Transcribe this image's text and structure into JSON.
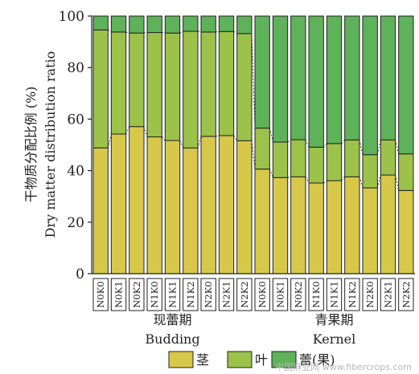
{
  "chart_data": {
    "type": "bar",
    "stacked": true,
    "categories": [
      "N0K0",
      "N0K1",
      "N0K2",
      "N1K0",
      "N1K1",
      "N1K2",
      "N2K0",
      "N2K1",
      "N2K2",
      "N0K0",
      "N0K1",
      "N0K2",
      "N1K0",
      "N1K1",
      "N1K2",
      "N2K0",
      "N2K1",
      "N2K2"
    ],
    "groups": [
      {
        "label_cn": "现蕾期",
        "label_en": "Budding",
        "count": 9
      },
      {
        "label_cn": "青果期",
        "label_en": "Kernel",
        "count": 9
      }
    ],
    "series": [
      {
        "name": "茎",
        "color": "#d8c84a",
        "values": [
          48.8,
          54.2,
          57.1,
          53.1,
          51.7,
          48.8,
          53.3,
          53.6,
          51.6,
          40.6,
          37.3,
          37.6,
          35.2,
          36.1,
          37.6,
          33.3,
          38.3,
          32.3
        ]
      },
      {
        "name": "叶",
        "color": "#9cc24a",
        "values": [
          45.8,
          39.6,
          36.3,
          40.5,
          41.7,
          45.3,
          40.5,
          40.4,
          41.6,
          15.9,
          13.8,
          14.4,
          13.9,
          14.4,
          14.3,
          12.9,
          13.6,
          14.2
        ]
      },
      {
        "name": "蕾(果)",
        "color": "#5eb25a",
        "values": [
          5.4,
          6.2,
          6.6,
          6.4,
          6.6,
          5.9,
          6.2,
          6.0,
          6.8,
          43.5,
          48.9,
          48.0,
          50.9,
          49.5,
          48.1,
          53.8,
          48.1,
          53.5
        ]
      }
    ],
    "ylabel_cn": "干物质分配比例 (%)",
    "ylabel_en": "Dry matter distribution ratio",
    "ylim": [
      0,
      100
    ],
    "yticks": [
      "0",
      "20",
      "40",
      "60",
      "80",
      "100"
    ],
    "grid": false,
    "legend_position": "bottom"
  },
  "watermark": "中国麻业网 www.fibercrops.com"
}
